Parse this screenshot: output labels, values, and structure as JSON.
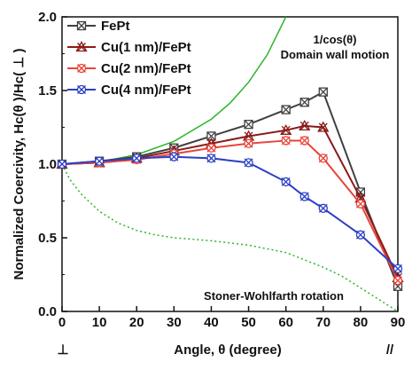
{
  "chart_data": {
    "type": "line",
    "xlabel": "Angle, θ  (degree)",
    "ylabel": "Normalized Coercivity, Hc(θ  )/Hc( ⊥ )",
    "xlim": [
      0,
      90
    ],
    "ylim": [
      0.0,
      2.0
    ],
    "x_ticks": [
      0,
      10,
      20,
      30,
      40,
      50,
      60,
      70,
      80,
      90
    ],
    "y_ticks": [
      0.0,
      0.5,
      1.0,
      1.5,
      2.0
    ],
    "x_tick_labels": [
      "0",
      "10",
      "20",
      "30",
      "40",
      "50",
      "60",
      "70",
      "80",
      "90"
    ],
    "y_tick_labels": [
      "0.0",
      "0.5",
      "1.0",
      "1.5",
      "2.0"
    ],
    "x_extra_labels": {
      "left": "⊥",
      "right": "//"
    },
    "grid": false,
    "legend_placement": "top-left",
    "annotations": {
      "domain_wall_line1": "1/cos(θ)",
      "domain_wall_line2": "Domain wall motion",
      "stoner": "Stoner-Wohlfarth rotation"
    },
    "series": [
      {
        "name": "FePt",
        "color": "#404040",
        "marker": "square-x",
        "x": [
          0,
          10,
          20,
          30,
          40,
          50,
          60,
          65,
          70,
          80,
          90
        ],
        "y": [
          1.0,
          1.02,
          1.05,
          1.11,
          1.19,
          1.27,
          1.37,
          1.42,
          1.49,
          0.81,
          0.17
        ]
      },
      {
        "name": "Cu(1 nm)/FePt",
        "color": "#8b1a1a",
        "marker": "triangle-x",
        "x": [
          0,
          10,
          20,
          30,
          40,
          50,
          60,
          65,
          70,
          80,
          90
        ],
        "y": [
          1.0,
          1.01,
          1.04,
          1.09,
          1.14,
          1.19,
          1.23,
          1.26,
          1.25,
          0.77,
          0.23
        ]
      },
      {
        "name": "Cu(2 nm)/FePt",
        "color": "#e8443a",
        "marker": "circle-x",
        "x": [
          0,
          10,
          20,
          30,
          40,
          50,
          60,
          65,
          70,
          80,
          90
        ],
        "y": [
          1.0,
          1.01,
          1.03,
          1.07,
          1.11,
          1.14,
          1.16,
          1.16,
          1.04,
          0.73,
          0.21
        ]
      },
      {
        "name": "Cu(4 nm)/FePt",
        "color": "#2b3fc4",
        "marker": "circle-x",
        "x": [
          0,
          10,
          20,
          30,
          40,
          50,
          60,
          65,
          70,
          80,
          90
        ],
        "y": [
          1.0,
          1.02,
          1.04,
          1.05,
          1.04,
          1.01,
          0.88,
          0.78,
          0.7,
          0.52,
          0.29
        ]
      }
    ],
    "reference_curves": [
      {
        "label": "1/cos(θ)",
        "color": "#2db52d",
        "style": "solid",
        "x": [
          0,
          10,
          20,
          30,
          40,
          45,
          50,
          55,
          60
        ],
        "y": [
          1.0,
          1.015,
          1.064,
          1.155,
          1.305,
          1.414,
          1.556,
          1.743,
          2.0
        ]
      },
      {
        "label": "Stoner-Wohlfarth rotation",
        "color": "#2db52d",
        "style": "dotted",
        "x": [
          0,
          2,
          5,
          10,
          15,
          20,
          25,
          30,
          40,
          50,
          60,
          65,
          70,
          75,
          80,
          85,
          90
        ],
        "y": [
          1.0,
          0.9,
          0.8,
          0.68,
          0.6,
          0.55,
          0.52,
          0.5,
          0.48,
          0.45,
          0.4,
          0.35,
          0.3,
          0.24,
          0.16,
          0.08,
          0.0
        ]
      }
    ]
  }
}
